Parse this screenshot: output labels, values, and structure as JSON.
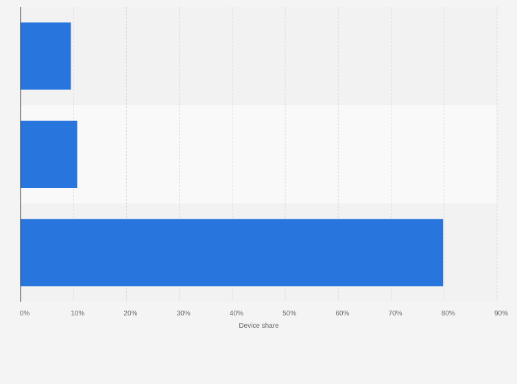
{
  "chart_data": {
    "type": "bar",
    "orientation": "horizontal",
    "categories": [
      "",
      "",
      ""
    ],
    "values": [
      9.5,
      10.7,
      79.8
    ],
    "title": "",
    "xlabel": "Device share",
    "ylabel": "",
    "xlim": [
      0,
      90
    ],
    "ticks": [
      0,
      10,
      20,
      30,
      40,
      50,
      60,
      70,
      80,
      90
    ],
    "tick_labels": [
      "0%",
      "10%",
      "20%",
      "30%",
      "40%",
      "50%",
      "60%",
      "70%",
      "80%",
      "90%"
    ],
    "grid": true,
    "legend": "none",
    "colors": {
      "bar": "#2876dd",
      "band_dark": "#f2f2f2",
      "band_light": "#f9f9f9",
      "grid": "#dcdcdc",
      "axis": "#333333"
    }
  }
}
